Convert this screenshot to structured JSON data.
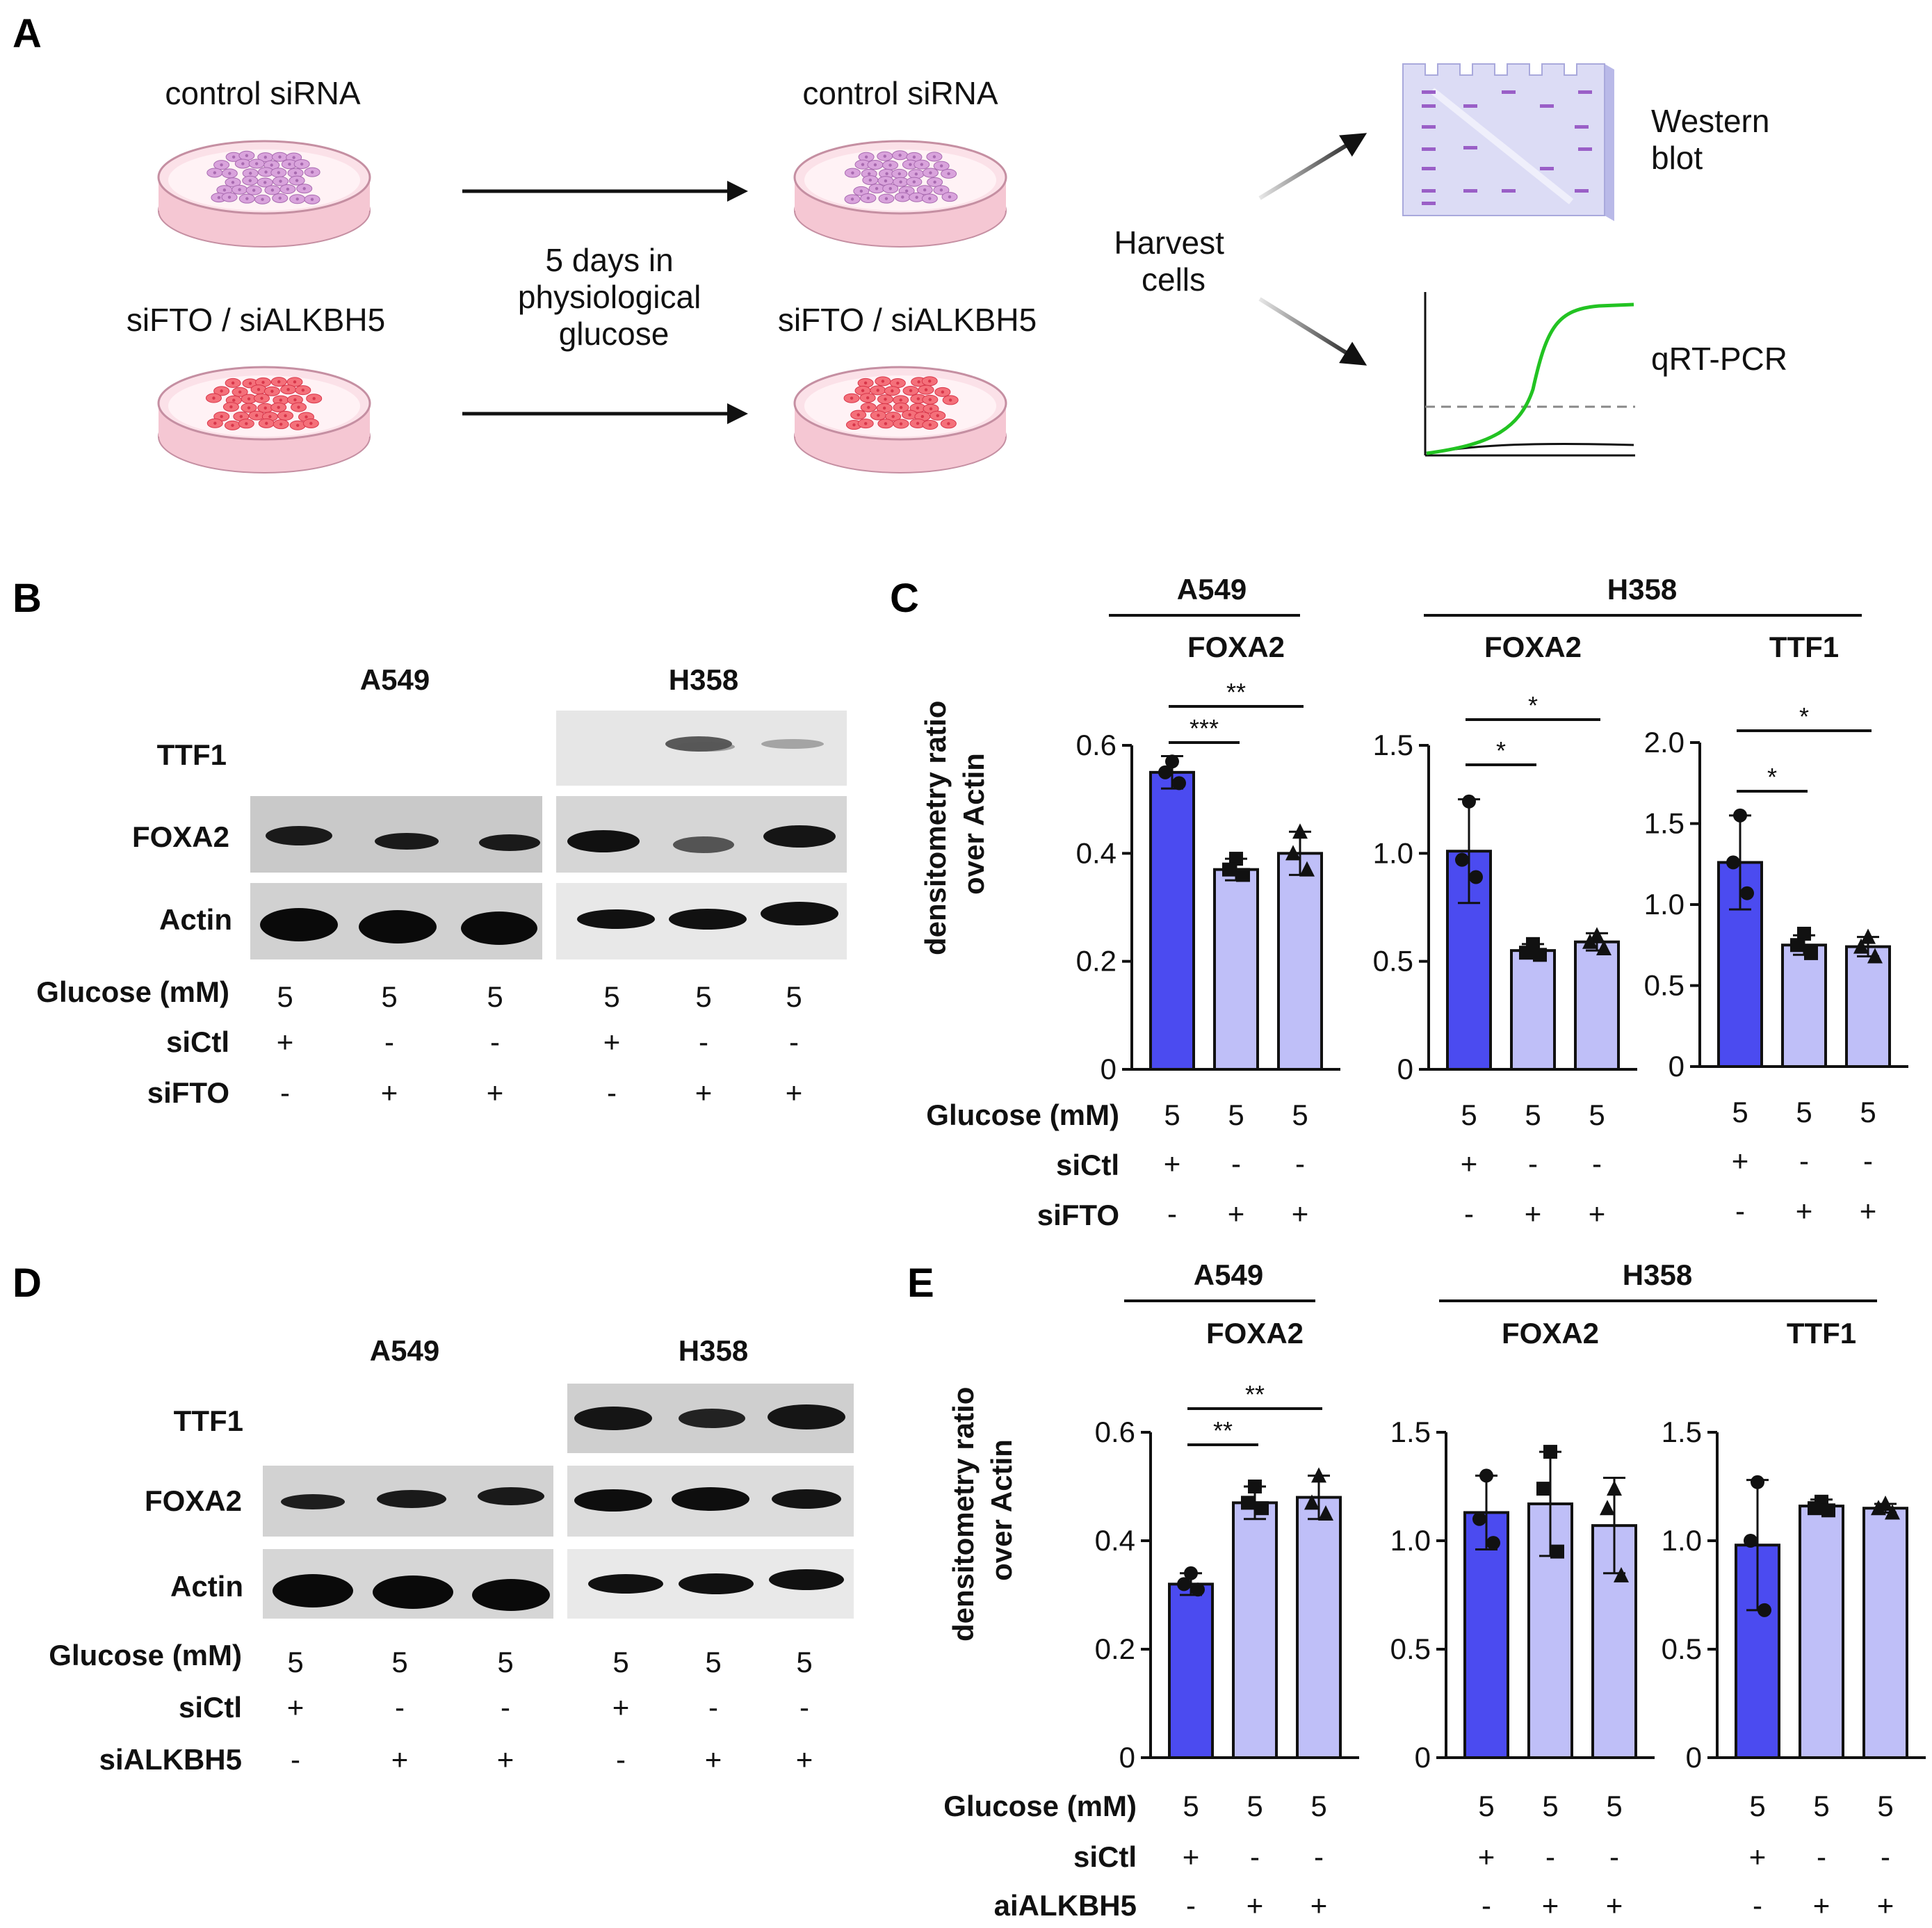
{
  "panels": {
    "A": "A",
    "B": "B",
    "C": "C",
    "D": "D",
    "E": "E"
  },
  "panel_a": {
    "dish_top_left": "control siRNA",
    "dish_bottom_left": "siFTO / siALKBH5",
    "dish_top_right": "control siRNA",
    "dish_bottom_right": "siFTO / siALKBH5",
    "incubation_lines": [
      "5 days in",
      "physiological",
      "glucose"
    ],
    "harvest_lines": [
      "Harvest",
      "cells"
    ],
    "western_lines": [
      "Western",
      "blot"
    ],
    "qpcr": "qRT-PCR",
    "colors": {
      "dish_control": "#d9a3dc",
      "dish_knockdown": "#f4707a",
      "dish_base": "#f5c7d3",
      "gel": "#dcdcf5",
      "gel_band": "#9a5fc7",
      "curve": "#22c322"
    }
  },
  "blot_B": {
    "line_A549": "A549",
    "line_H358": "H358",
    "proteins": [
      "TTF1",
      "FOXA2",
      "Actin"
    ],
    "row_labels": [
      "Glucose (mM)",
      "siCtl",
      "siFTO"
    ],
    "glucose": [
      "5",
      "5",
      "5",
      "5",
      "5",
      "5"
    ],
    "ctl": [
      "+",
      "-",
      "-",
      "+",
      "-",
      "-"
    ],
    "kd": [
      "-",
      "+",
      "+",
      "-",
      "+",
      "+"
    ]
  },
  "blot_D": {
    "line_A549": "A549",
    "line_H358": "H358",
    "proteins": [
      "TTF1",
      "FOXA2",
      "Actin"
    ],
    "row_labels": [
      "Glucose (mM)",
      "siCtl",
      "siALKBH5"
    ],
    "glucose": [
      "5",
      "5",
      "5",
      "5",
      "5",
      "5"
    ],
    "ctl": [
      "+",
      "-",
      "-",
      "+",
      "-",
      "-"
    ],
    "kd": [
      "-",
      "+",
      "+",
      "-",
      "+",
      "+"
    ]
  },
  "chart_C": {
    "cell_lines": [
      "A549",
      "H358"
    ],
    "ylabel_lines": [
      "densitometry ratio",
      "over Actin"
    ],
    "row_labels": [
      "Glucose (mM)",
      "siCtl",
      "siFTO"
    ],
    "glucose": [
      "5",
      "5",
      "5"
    ],
    "ctl": [
      "+",
      "-",
      "-"
    ],
    "kd": [
      "-",
      "+",
      "+"
    ]
  },
  "chart_E": {
    "cell_lines": [
      "A549",
      "H358"
    ],
    "ylabel_lines": [
      "densitometry ratio",
      "over Actin"
    ],
    "row_labels": [
      "Glucose (mM)",
      "siCtl",
      "aiALKBH5"
    ],
    "glucose": [
      "5",
      "5",
      "5"
    ],
    "ctl": [
      "+",
      "-",
      "-"
    ],
    "kd": [
      "-",
      "+",
      "+"
    ]
  },
  "chart_data": [
    {
      "type": "bar",
      "panel": "C",
      "title": "FOXA2",
      "cell_line": "A549",
      "categories": [
        "siCtl",
        "siFTO",
        "siFTO"
      ],
      "values": [
        0.55,
        0.37,
        0.4
      ],
      "errors": [
        0.03,
        0.02,
        0.04
      ],
      "points": [
        [
          0.57,
          0.55,
          0.53
        ],
        [
          0.39,
          0.37,
          0.36
        ],
        [
          0.44,
          0.4,
          0.37
        ]
      ],
      "ylim": [
        0,
        0.6
      ],
      "yticks": [
        "0",
        "0.2",
        "0.4",
        "0.6"
      ],
      "significance": [
        {
          "from": 0,
          "to": 1,
          "label": "***"
        },
        {
          "from": 0,
          "to": 2,
          "label": "**"
        }
      ]
    },
    {
      "type": "bar",
      "panel": "C",
      "title": "FOXA2",
      "cell_line": "H358",
      "categories": [
        "siCtl",
        "siFTO",
        "siFTO"
      ],
      "values": [
        1.01,
        0.55,
        0.59
      ],
      "errors": [
        0.24,
        0.03,
        0.04
      ],
      "points": [
        [
          1.24,
          0.97,
          0.89
        ],
        [
          0.58,
          0.54,
          0.53
        ],
        [
          0.62,
          0.59,
          0.56
        ]
      ],
      "ylim": [
        0,
        1.5
      ],
      "yticks": [
        "0",
        "0.5",
        "1.0",
        "1.5"
      ],
      "significance": [
        {
          "from": 0,
          "to": 1,
          "label": "*"
        },
        {
          "from": 0,
          "to": 2,
          "label": "*"
        }
      ]
    },
    {
      "type": "bar",
      "panel": "C",
      "title": "TTF1",
      "cell_line": "H358",
      "categories": [
        "siCtl",
        "siFTO",
        "siFTO"
      ],
      "values": [
        1.26,
        0.75,
        0.74
      ],
      "errors": [
        0.29,
        0.06,
        0.06
      ],
      "points": [
        [
          1.55,
          1.26,
          1.07
        ],
        [
          0.82,
          0.75,
          0.7
        ],
        [
          0.8,
          0.74,
          0.68
        ]
      ],
      "ylim": [
        0,
        2.0
      ],
      "yticks": [
        "0",
        "0.5",
        "1.0",
        "1.5",
        "2.0"
      ],
      "significance": [
        {
          "from": 0,
          "to": 1,
          "label": "*"
        },
        {
          "from": 0,
          "to": 2,
          "label": "*"
        }
      ]
    },
    {
      "type": "bar",
      "panel": "E",
      "title": "FOXA2",
      "cell_line": "A549",
      "categories": [
        "siCtl",
        "aiALKBH5",
        "aiALKBH5"
      ],
      "values": [
        0.32,
        0.47,
        0.48
      ],
      "errors": [
        0.02,
        0.03,
        0.04
      ],
      "points": [
        [
          0.34,
          0.32,
          0.31
        ],
        [
          0.5,
          0.47,
          0.46
        ],
        [
          0.52,
          0.47,
          0.45
        ]
      ],
      "ylim": [
        0,
        0.6
      ],
      "yticks": [
        "0",
        "0.2",
        "0.4",
        "0.6"
      ],
      "significance": [
        {
          "from": 0,
          "to": 1,
          "label": "**"
        },
        {
          "from": 0,
          "to": 2,
          "label": "**"
        }
      ]
    },
    {
      "type": "bar",
      "panel": "E",
      "title": "FOXA2",
      "cell_line": "H358",
      "categories": [
        "siCtl",
        "aiALKBH5",
        "aiALKBH5"
      ],
      "values": [
        1.13,
        1.17,
        1.07
      ],
      "errors": [
        0.17,
        0.24,
        0.22
      ],
      "points": [
        [
          1.3,
          1.1,
          0.99
        ],
        [
          1.41,
          1.24,
          0.95
        ],
        [
          1.24,
          1.15,
          0.84
        ]
      ],
      "ylim": [
        0,
        1.5
      ],
      "yticks": [
        "0",
        "0.5",
        "1.0",
        "1.5"
      ],
      "significance": []
    },
    {
      "type": "bar",
      "panel": "E",
      "title": "TTF1",
      "cell_line": "H358",
      "categories": [
        "siCtl",
        "aiALKBH5",
        "aiALKBH5"
      ],
      "values": [
        0.98,
        1.16,
        1.15
      ],
      "errors": [
        0.3,
        0.03,
        0.02
      ],
      "points": [
        [
          1.27,
          1.0,
          0.68
        ],
        [
          1.18,
          1.15,
          1.14
        ],
        [
          1.17,
          1.15,
          1.13
        ]
      ],
      "ylim": [
        0,
        1.5
      ],
      "yticks": [
        "0",
        "0.5",
        "1.0",
        "1.5"
      ],
      "significance": []
    }
  ]
}
